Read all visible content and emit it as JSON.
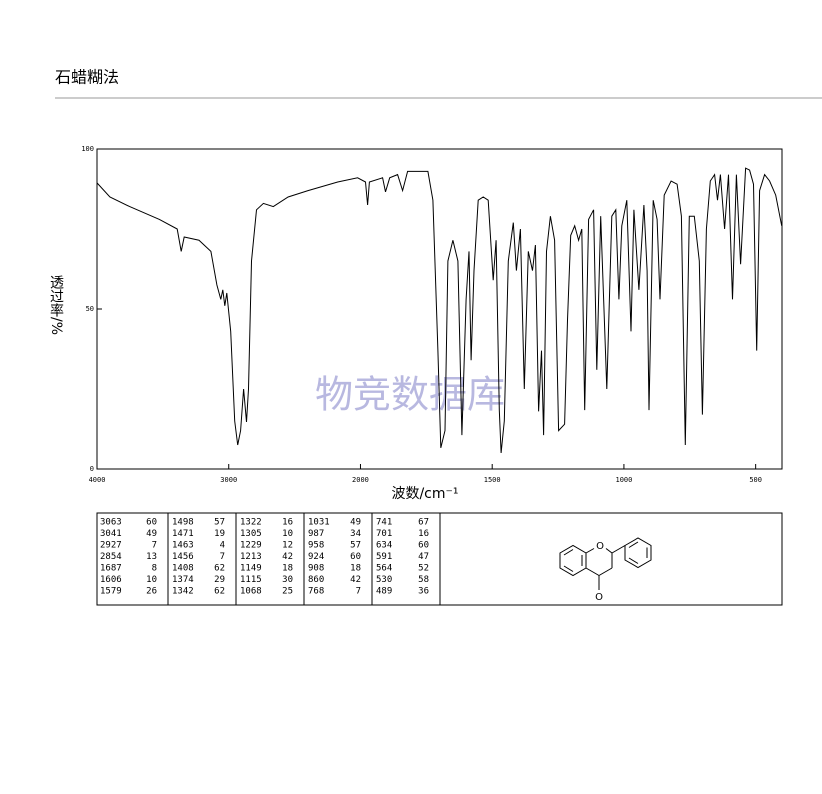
{
  "header": {
    "title": "石蜡糊法"
  },
  "watermark": "物竞数据库",
  "chart_data": {
    "type": "line",
    "xlabel": "波数/cm⁻¹",
    "ylabel": "透过率/%",
    "color": "#000000",
    "xlim": [
      4000,
      400
    ],
    "ylim": [
      0,
      100
    ],
    "xticks": [
      4000,
      3000,
      2000,
      1500,
      1000,
      500
    ],
    "yticks": [
      0,
      50,
      100
    ],
    "xscale_break": {
      "at": 2000,
      "factor": 2
    },
    "x": [
      4000,
      3902,
      3752,
      3526,
      3391,
      3361,
      3338,
      3226,
      3135,
      3090,
      3060,
      3045,
      3030,
      3015,
      2985,
      2955,
      2932,
      2910,
      2887,
      2865,
      2850,
      2827,
      2789,
      2737,
      2662,
      2549,
      2398,
      2173,
      2022,
      1981,
      1973,
      1966,
      1916,
      1905,
      1889,
      1859,
      1840,
      1821,
      1782,
      1744,
      1725,
      1706,
      1695,
      1679,
      1668,
      1649,
      1630,
      1615,
      1599,
      1588,
      1580,
      1569,
      1553,
      1534,
      1515,
      1496,
      1485,
      1473,
      1466,
      1454,
      1439,
      1420,
      1408,
      1393,
      1378,
      1363,
      1347,
      1336,
      1324,
      1313,
      1305,
      1294,
      1279,
      1263,
      1248,
      1225,
      1214,
      1202,
      1187,
      1172,
      1160,
      1149,
      1134,
      1115,
      1103,
      1088,
      1065,
      1046,
      1031,
      1019,
      1008,
      989,
      973,
      962,
      943,
      924,
      912,
      905,
      889,
      874,
      863,
      847,
      821,
      798,
      782,
      767,
      752,
      733,
      714,
      702,
      687,
      672,
      656,
      645,
      634,
      618,
      603,
      588,
      573,
      557,
      538,
      523,
      508,
      496,
      485,
      466,
      447,
      424,
      401
    ],
    "values": [
      89.4,
      85,
      82,
      78,
      75,
      68,
      72.5,
      71.5,
      68,
      57.5,
      53,
      56,
      51,
      55,
      43,
      15,
      7.5,
      12,
      25,
      14.7,
      25,
      65,
      81,
      83,
      82,
      85,
      87,
      89.7,
      91,
      89.7,
      82.5,
      89.7,
      91,
      86.6,
      91,
      92,
      87,
      93,
      93,
      93,
      84,
      37,
      6.6,
      12,
      65,
      71.5,
      65,
      10.6,
      53,
      68,
      34,
      62,
      84,
      85,
      84,
      59,
      71.5,
      18.4,
      5,
      15,
      65,
      77,
      62,
      75,
      25,
      68,
      62,
      70,
      18,
      37,
      10.6,
      68,
      79,
      71.5,
      12,
      14,
      46.5,
      73,
      76,
      71.5,
      75,
      18.4,
      78,
      81,
      31,
      79,
      25,
      79,
      81,
      53,
      76,
      84,
      43,
      81,
      56,
      82.5,
      62,
      18.4,
      84,
      78,
      53,
      85.6,
      90,
      89,
      79,
      7.5,
      79,
      79,
      65,
      17,
      75,
      90,
      92,
      84,
      92,
      75,
      92,
      53,
      92,
      64,
      94,
      93.4,
      89,
      37,
      87,
      92,
      90,
      85.6,
      76
    ]
  },
  "table": {
    "columns": [
      [
        [
          "3063",
          "60"
        ],
        [
          "3041",
          "49"
        ],
        [
          "2927",
          "7"
        ],
        [
          "2854",
          "13"
        ],
        [
          "1687",
          "8"
        ],
        [
          "1606",
          "10"
        ],
        [
          "1579",
          "26"
        ]
      ],
      [
        [
          "1498",
          "57"
        ],
        [
          "1471",
          "19"
        ],
        [
          "1463",
          "4"
        ],
        [
          "1456",
          "7"
        ],
        [
          "1408",
          "62"
        ],
        [
          "1374",
          "29"
        ],
        [
          "1342",
          "62"
        ]
      ],
      [
        [
          "1322",
          "16"
        ],
        [
          "1305",
          "10"
        ],
        [
          "1229",
          "12"
        ],
        [
          "1213",
          "42"
        ],
        [
          "1149",
          "18"
        ],
        [
          "1115",
          "30"
        ],
        [
          "1068",
          "25"
        ]
      ],
      [
        [
          "1031",
          "49"
        ],
        [
          "987",
          "34"
        ],
        [
          "958",
          "57"
        ],
        [
          "924",
          "60"
        ],
        [
          "908",
          "18"
        ],
        [
          "860",
          "42"
        ],
        [
          "768",
          "7"
        ]
      ],
      [
        [
          "741",
          "67"
        ],
        [
          "701",
          "16"
        ],
        [
          "634",
          "60"
        ],
        [
          "591",
          "47"
        ],
        [
          "564",
          "52"
        ],
        [
          "530",
          "58"
        ],
        [
          "489",
          "36"
        ]
      ]
    ]
  },
  "structure": {
    "atoms": [
      "O",
      "O"
    ]
  }
}
